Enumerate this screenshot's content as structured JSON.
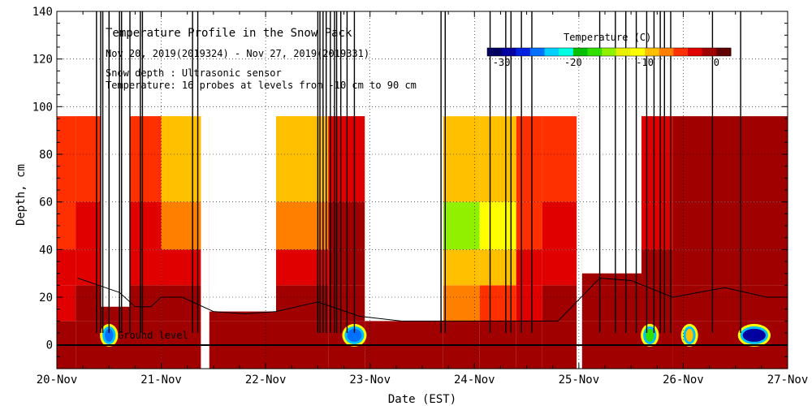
{
  "chart_data": {
    "type": "heatmap",
    "title": "Temperature Profile in the Snow Pack",
    "subtitle": "Nov 20, 2019(2019324) - Nov 27, 2019(2019331)",
    "annotations": [
      "Snow depth : Ultrasonic sensor",
      "Temperature: 16 probes at levels from -10 cm to 90 cm"
    ],
    "ground_label": "Ground level",
    "xlabel": "Date (EST)",
    "ylabel": "Depth, cm",
    "x_ticks": [
      "20-Nov",
      "21-Nov",
      "22-Nov",
      "23-Nov",
      "24-Nov",
      "25-Nov",
      "26-Nov",
      "27-Nov"
    ],
    "y_ticks": [
      0,
      20,
      40,
      60,
      80,
      100,
      120,
      140
    ],
    "ylim": [
      -10,
      140
    ],
    "xlim": [
      0,
      7
    ],
    "grid": true,
    "colorbar": {
      "title": "Temperature (C)",
      "ticks": [
        -30,
        -20,
        -10,
        0
      ],
      "range": [
        -32,
        2
      ],
      "placement": "top-right",
      "colors": [
        "#000060",
        "#0000a0",
        "#0020e0",
        "#0070ff",
        "#00d0ff",
        "#00ffe0",
        "#00c000",
        "#30e000",
        "#90f000",
        "#e8f000",
        "#ffff00",
        "#ffc000",
        "#ff8000",
        "#ff3000",
        "#e00000",
        "#a00000",
        "#600000"
      ]
    },
    "temperature_blocks": [
      {
        "x0": 0.0,
        "x1": 0.18,
        "temps": [
          -1,
          0,
          -2,
          -3,
          -4,
          -5
        ]
      },
      {
        "x0": 0.18,
        "x1": 0.42,
        "temps": [
          -1,
          0,
          -1,
          -2,
          -3,
          -5
        ]
      },
      {
        "x0": 0.42,
        "x1": 0.7,
        "temps": [
          -1,
          0,
          -1,
          -1,
          -2,
          -2
        ]
      },
      {
        "x0": 0.7,
        "x1": 1.0,
        "temps": [
          -1,
          0,
          -1,
          -2,
          -3,
          -5
        ]
      },
      {
        "x0": 1.0,
        "x1": 1.38,
        "temps": [
          -1,
          0,
          -1,
          -3,
          -6,
          -8
        ]
      },
      {
        "x0": 1.38,
        "x1": 1.46,
        "temps": [
          -1,
          0,
          -1,
          -1,
          -2,
          -2
        ]
      },
      {
        "x0": 1.46,
        "x1": 2.1,
        "temps": [
          -1,
          0,
          -1,
          -2,
          -7,
          -8
        ]
      },
      {
        "x0": 2.1,
        "x1": 2.6,
        "temps": [
          -1,
          0,
          -1,
          -2,
          -6,
          -8
        ]
      },
      {
        "x0": 2.6,
        "x1": 2.95,
        "temps": [
          -1,
          0,
          -1,
          -1,
          -1,
          -2
        ]
      },
      {
        "x0": 2.95,
        "x1": 3.7,
        "temps": [
          -1,
          0,
          -1,
          -1,
          -1,
          -1
        ]
      },
      {
        "x0": 3.7,
        "x1": 4.05,
        "temps": [
          -1,
          0,
          -6,
          -9,
          -14,
          -9
        ]
      },
      {
        "x0": 4.05,
        "x1": 4.4,
        "temps": [
          -1,
          0,
          -4,
          -8,
          -10,
          -9
        ]
      },
      {
        "x0": 4.4,
        "x1": 4.65,
        "temps": [
          -1,
          0,
          -2,
          -3,
          -4,
          -5
        ]
      },
      {
        "x0": 4.65,
        "x1": 4.98,
        "temps": [
          -1,
          0,
          -1,
          -2,
          -3,
          -4
        ]
      },
      {
        "x0": 5.03,
        "x1": 5.6,
        "temps": [
          -1,
          0,
          -1,
          -1,
          -1,
          -1
        ]
      },
      {
        "x0": 5.6,
        "x1": 5.9,
        "temps": [
          -1,
          0,
          -1,
          -1,
          -2,
          -2
        ]
      },
      {
        "x0": 5.9,
        "x1": 7.0,
        "temps": [
          -1,
          0,
          -1,
          -1,
          -1,
          -1
        ]
      }
    ],
    "snow_depth": [
      {
        "x": 0.2,
        "y": 28
      },
      {
        "x": 0.4,
        "y": 25
      },
      {
        "x": 0.6,
        "y": 22
      },
      {
        "x": 0.75,
        "y": 16
      },
      {
        "x": 0.9,
        "y": 16
      },
      {
        "x": 1.0,
        "y": 20
      },
      {
        "x": 1.2,
        "y": 20
      },
      {
        "x": 1.3,
        "y": 18
      },
      {
        "x": 1.5,
        "y": 14
      },
      {
        "x": 1.8,
        "y": 13
      },
      {
        "x": 2.1,
        "y": 14
      },
      {
        "x": 2.5,
        "y": 18
      },
      {
        "x": 2.9,
        "y": 12
      },
      {
        "x": 3.3,
        "y": 10
      },
      {
        "x": 3.7,
        "y": 10
      },
      {
        "x": 4.2,
        "y": 10
      },
      {
        "x": 4.8,
        "y": 10
      },
      {
        "x": 5.2,
        "y": 28
      },
      {
        "x": 5.5,
        "y": 27
      },
      {
        "x": 5.9,
        "y": 20
      },
      {
        "x": 6.4,
        "y": 24
      },
      {
        "x": 6.8,
        "y": 20
      },
      {
        "x": 7.0,
        "y": 20
      }
    ]
  }
}
